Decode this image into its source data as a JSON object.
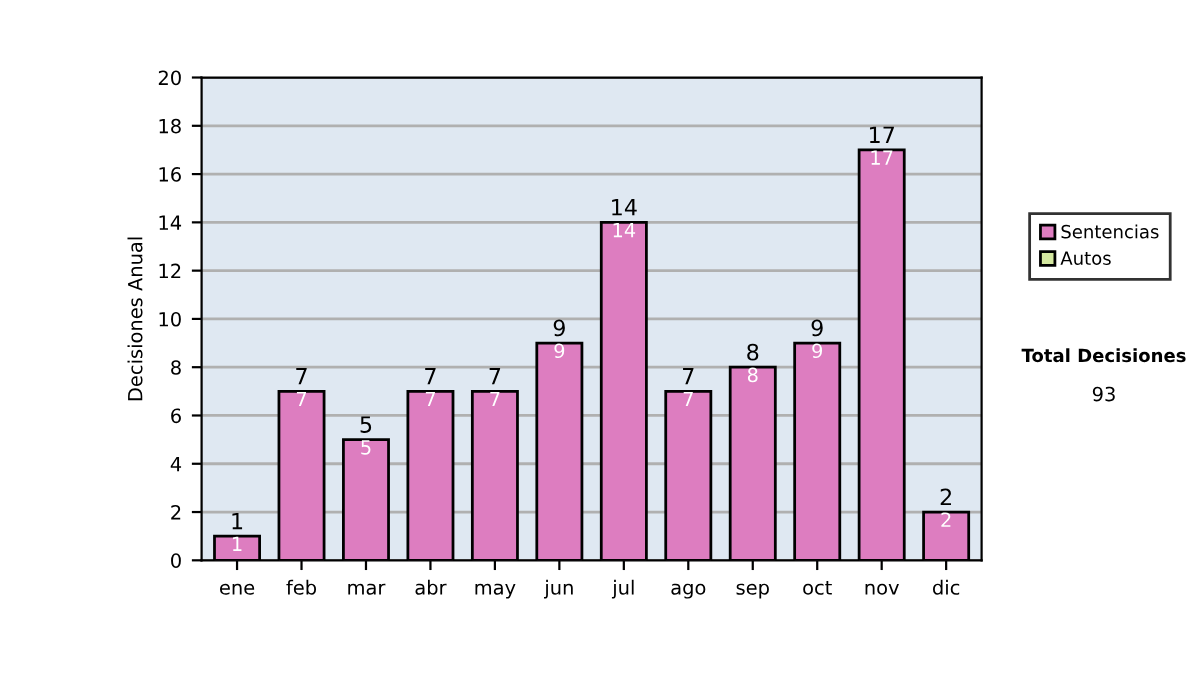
{
  "chart_data": {
    "type": "bar",
    "ylabel": "Decisiones Anual",
    "categories": [
      "ene",
      "feb",
      "mar",
      "abr",
      "may",
      "jun",
      "jul",
      "ago",
      "sep",
      "oct",
      "nov",
      "dic"
    ],
    "stacked": true,
    "series": [
      {
        "name": "Sentencias",
        "color": "#dd7dc0",
        "values": [
          1,
          7,
          5,
          7,
          7,
          9,
          14,
          7,
          8,
          9,
          17,
          2
        ],
        "value_labels": [
          "1",
          "7",
          "5",
          "7",
          "7",
          "9",
          "14",
          "7",
          "8",
          "9",
          "17",
          "2"
        ]
      },
      {
        "name": "Autos",
        "color": "#d4e8a0",
        "values": [
          0,
          0,
          0,
          0,
          0,
          0,
          0,
          0,
          0,
          0,
          0,
          0
        ]
      }
    ],
    "totals": [
      "1",
      "7",
      "5",
      "7",
      "7",
      "9",
      "14",
      "7",
      "8",
      "9",
      "17",
      "2"
    ],
    "ylim": [
      0,
      20
    ],
    "yticks": [
      0,
      2,
      4,
      6,
      8,
      10,
      12,
      14,
      16,
      18,
      20
    ],
    "grid": "y",
    "legend": "right",
    "annotations": [
      "Total Decisiones",
      "93"
    ]
  }
}
